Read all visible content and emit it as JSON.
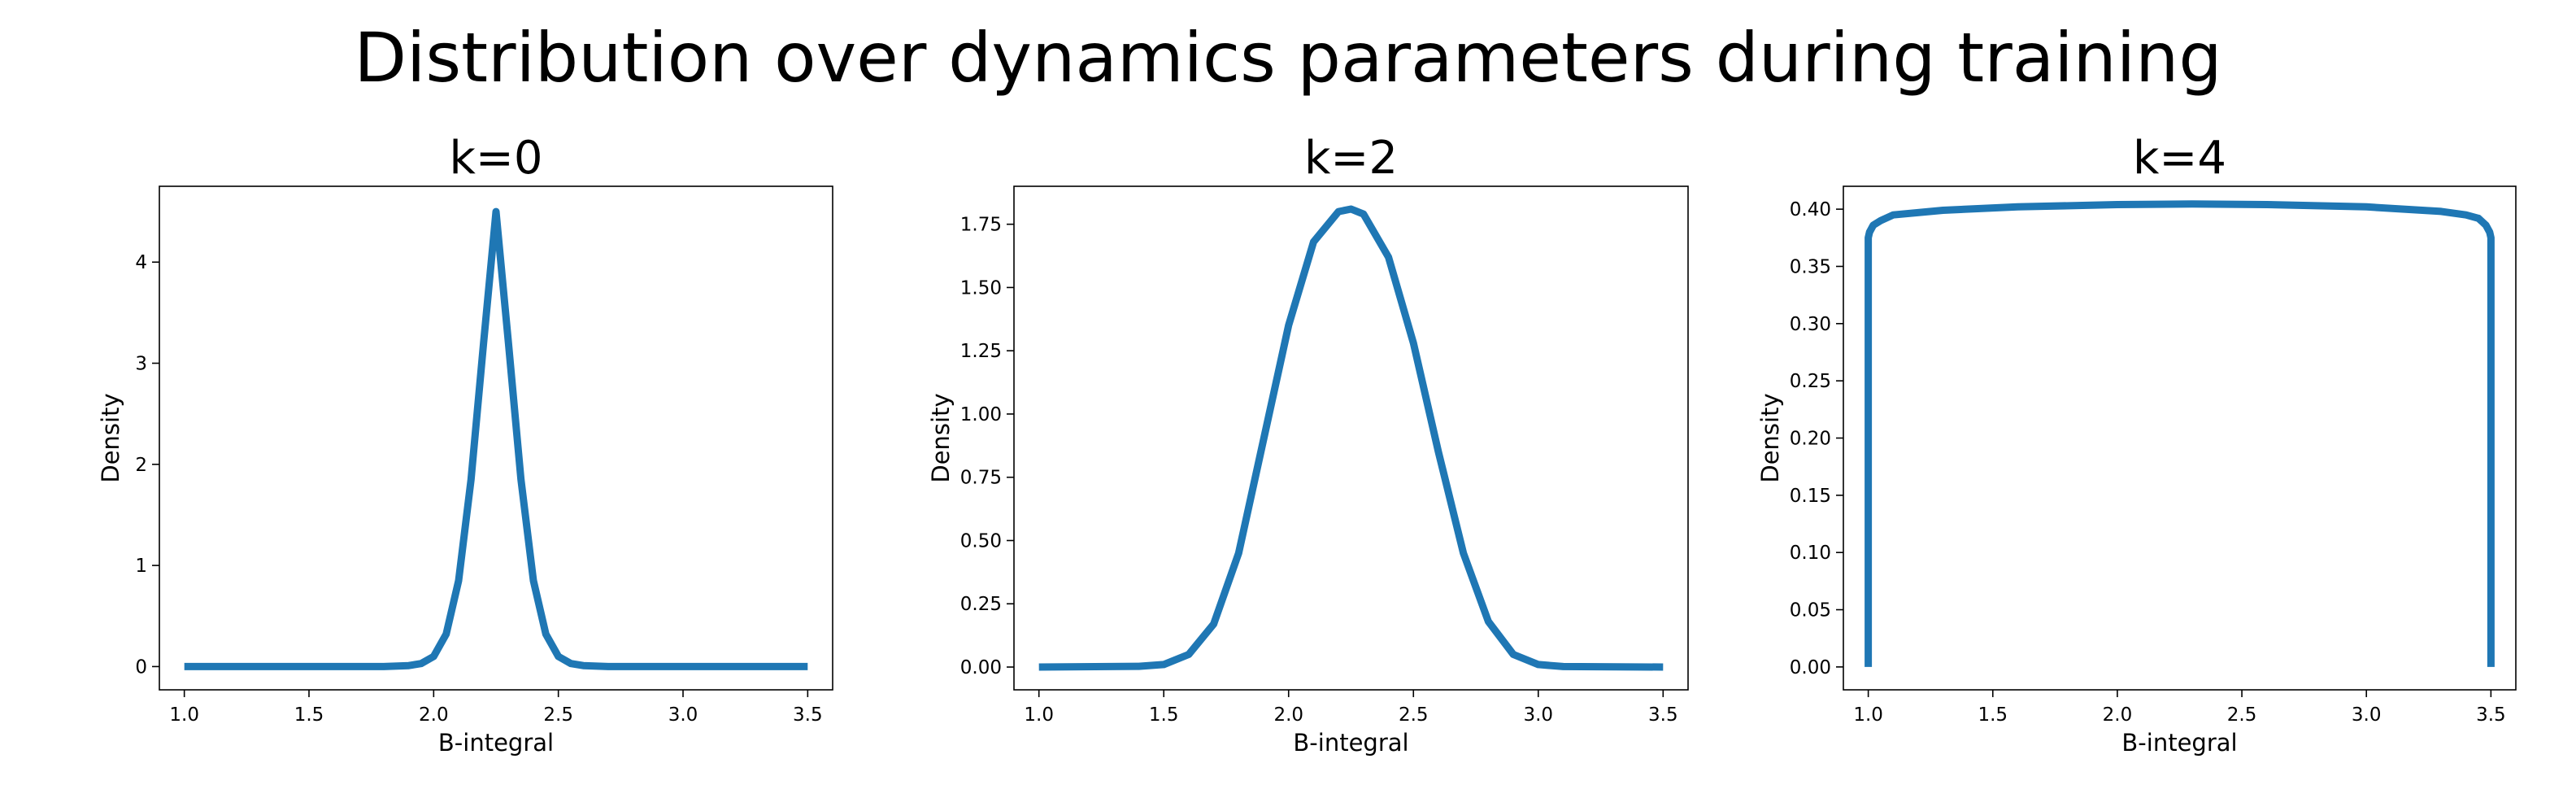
{
  "figure": {
    "title": "Distribution over dynamics parameters during training"
  },
  "chart_data": [
    {
      "type": "line",
      "title": "k=0",
      "xlabel": "B-integral",
      "ylabel": "Density",
      "xlim": [
        0.9,
        3.6
      ],
      "ylim": [
        -0.23,
        4.75
      ],
      "xticks": [
        "1.0",
        "1.5",
        "2.0",
        "2.5",
        "3.0",
        "3.5"
      ],
      "yticks": [
        "0",
        "1",
        "2",
        "3",
        "4"
      ],
      "color": "#1f77b4",
      "grid": false,
      "series": [
        {
          "x": [
            1.0,
            1.5,
            1.8,
            1.9,
            1.95,
            2.0,
            2.05,
            2.1,
            2.15,
            2.2,
            2.25,
            2.3,
            2.35,
            2.4,
            2.45,
            2.5,
            2.55,
            2.6,
            2.7,
            3.0,
            3.5
          ],
          "values": [
            0.0,
            0.0,
            0.0,
            0.01,
            0.03,
            0.1,
            0.32,
            0.85,
            1.85,
            3.2,
            4.5,
            3.2,
            1.85,
            0.85,
            0.32,
            0.1,
            0.03,
            0.01,
            0.0,
            0.0,
            0.0
          ]
        }
      ]
    },
    {
      "type": "line",
      "title": "k=2",
      "xlabel": "B-integral",
      "ylabel": "Density",
      "xlim": [
        0.9,
        3.6
      ],
      "ylim": [
        -0.09,
        1.9
      ],
      "xticks": [
        "1.0",
        "1.5",
        "2.0",
        "2.5",
        "3.0",
        "3.5"
      ],
      "yticks": [
        "0.00",
        "0.25",
        "0.50",
        "0.75",
        "1.00",
        "1.25",
        "1.50",
        "1.75"
      ],
      "color": "#1f77b4",
      "grid": false,
      "series": [
        {
          "x": [
            1.0,
            1.4,
            1.5,
            1.6,
            1.7,
            1.8,
            1.9,
            2.0,
            2.1,
            2.2,
            2.25,
            2.3,
            2.4,
            2.5,
            2.6,
            2.7,
            2.8,
            2.9,
            3.0,
            3.1,
            3.5
          ],
          "values": [
            0.0,
            0.003,
            0.01,
            0.05,
            0.17,
            0.45,
            0.9,
            1.35,
            1.68,
            1.8,
            1.81,
            1.79,
            1.62,
            1.28,
            0.85,
            0.45,
            0.18,
            0.05,
            0.01,
            0.002,
            0.0
          ]
        }
      ]
    },
    {
      "type": "line",
      "title": "k=4",
      "xlabel": "B-integral",
      "ylabel": "Density",
      "xlim": [
        0.9,
        3.6
      ],
      "ylim": [
        -0.02,
        0.42
      ],
      "xticks": [
        "1.0",
        "1.5",
        "2.0",
        "2.5",
        "3.0",
        "3.5"
      ],
      "yticks": [
        "0.00",
        "0.05",
        "0.10",
        "0.15",
        "0.20",
        "0.25",
        "0.30",
        "0.35",
        "0.40"
      ],
      "color": "#1f77b4",
      "grid": false,
      "series": [
        {
          "x": [
            1.0,
            1.0,
            1.005,
            1.02,
            1.05,
            1.1,
            1.3,
            1.6,
            2.0,
            2.3,
            2.6,
            3.0,
            3.3,
            3.4,
            3.45,
            3.48,
            3.495,
            3.5,
            3.5
          ],
          "values": [
            0.0,
            0.375,
            0.38,
            0.386,
            0.39,
            0.395,
            0.399,
            0.402,
            0.404,
            0.4045,
            0.404,
            0.402,
            0.398,
            0.395,
            0.392,
            0.386,
            0.38,
            0.375,
            0.0
          ]
        }
      ]
    }
  ]
}
